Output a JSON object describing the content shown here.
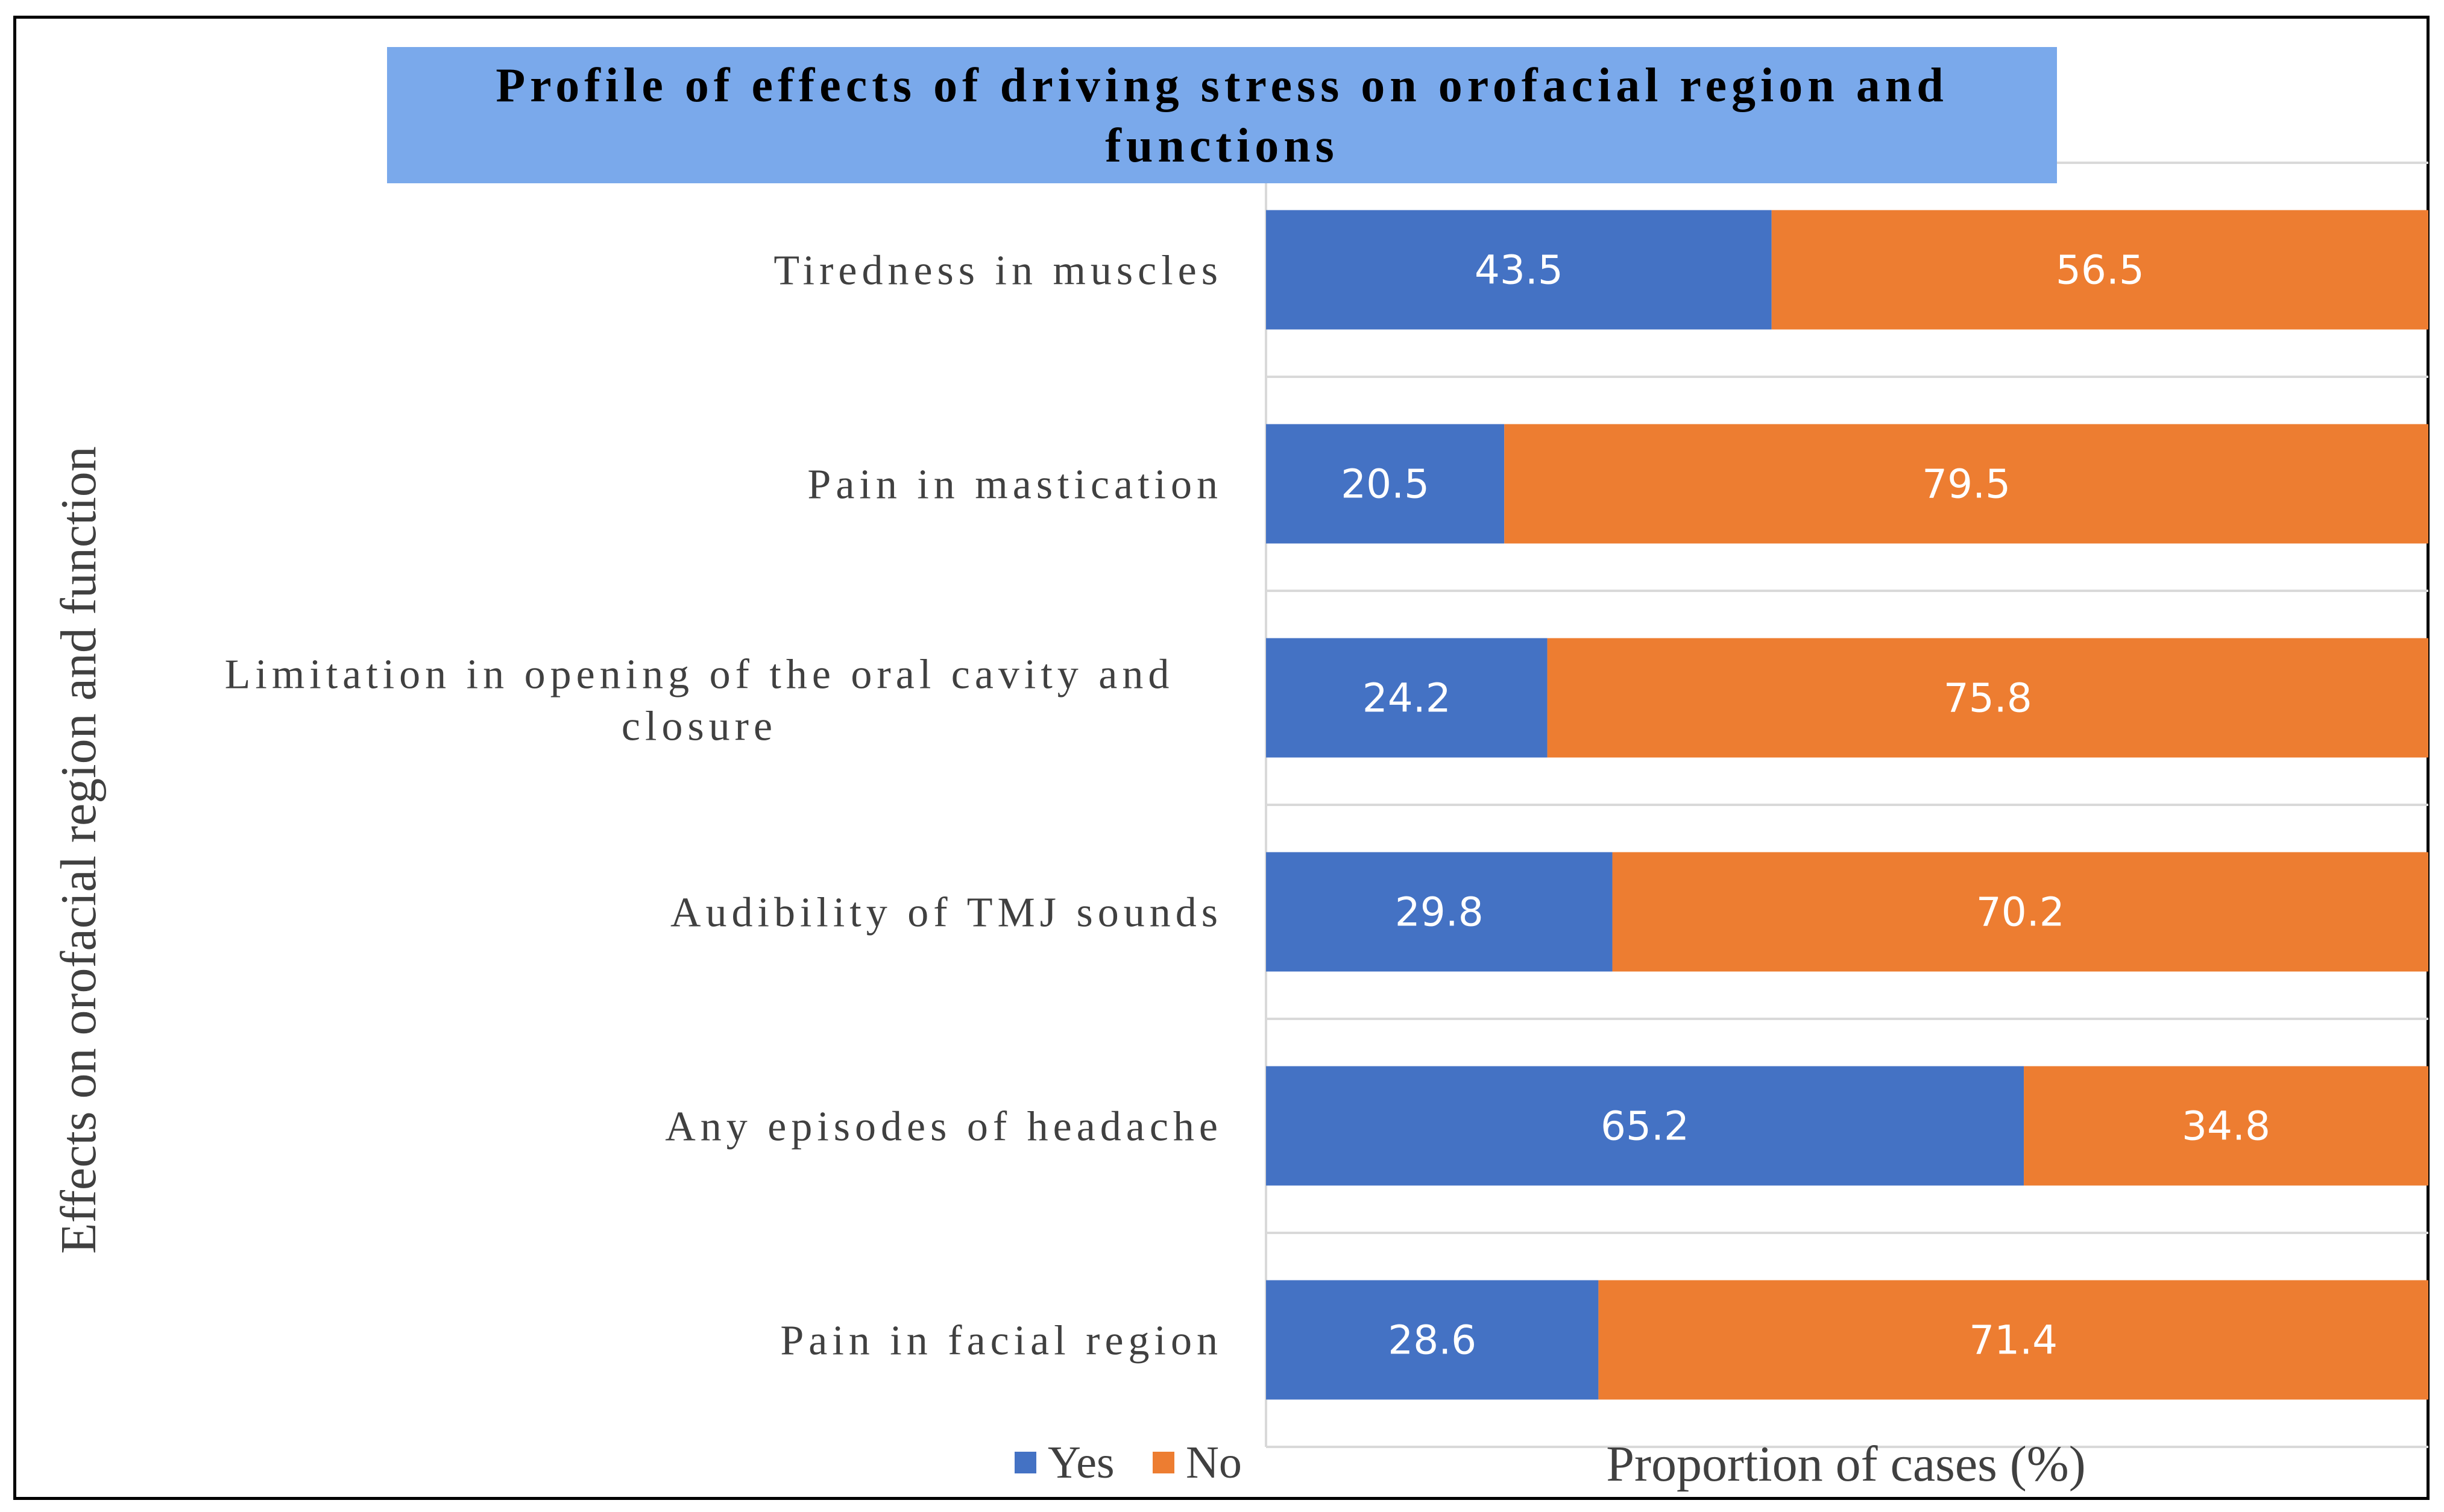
{
  "chart_data": {
    "type": "bar",
    "orientation": "horizontal",
    "stacked": true,
    "title": "Profile of effects of driving stress on orofacial region and functions",
    "categories": [
      "Tiredness in muscles",
      "Pain in mastication",
      "Limitation in opening of the oral cavity and closure",
      "Audibility of TMJ sounds",
      "Any episodes of headache",
      "Pain in facial region"
    ],
    "series": [
      {
        "name": "Yes",
        "color": "#4472c4",
        "values": [
          43.5,
          20.5,
          24.2,
          29.8,
          65.2,
          28.6
        ]
      },
      {
        "name": "No",
        "color": "#ed7d31",
        "values": [
          56.5,
          79.5,
          75.8,
          70.2,
          34.8,
          71.4
        ]
      }
    ],
    "xlabel": "Proportion of cases (%)",
    "ylabel": "Effects on orofacial region and function",
    "xlim": [
      0,
      100
    ],
    "grid": true,
    "legend": "bottom-left",
    "data_labels": true
  }
}
